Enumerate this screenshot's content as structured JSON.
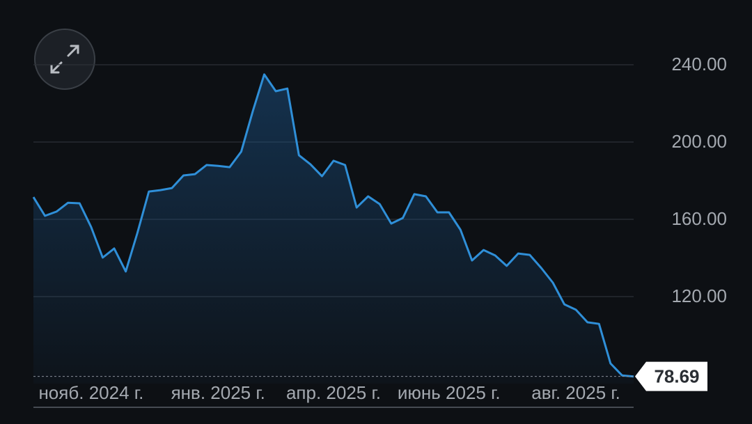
{
  "chart_data": {
    "type": "area",
    "categories": [
      null,
      null,
      null,
      null,
      null,
      "нояб. 2024 г.",
      null,
      null,
      null,
      null,
      null,
      null,
      null,
      null,
      null,
      null,
      "янв. 2025 г.",
      null,
      null,
      null,
      null,
      null,
      null,
      null,
      null,
      null,
      "апр. 2025 г.",
      null,
      null,
      null,
      null,
      null,
      null,
      null,
      null,
      null,
      "июнь 2025 г.",
      null,
      null,
      null,
      null,
      null,
      null,
      null,
      null,
      null,
      null,
      "авг. 2025 г.",
      null,
      null,
      null,
      null,
      null
    ],
    "values": [
      171.5,
      161.8,
      164.0,
      168.6,
      168.3,
      156.0,
      140.2,
      144.9,
      133.0,
      152.8,
      174.4,
      175.1,
      176.2,
      182.7,
      183.4,
      188.1,
      187.7,
      187.0,
      195.0,
      215.9,
      235.0,
      226.3,
      227.7,
      193.2,
      188.5,
      182.3,
      190.3,
      188.1,
      166.1,
      171.9,
      167.9,
      157.8,
      160.7,
      173.0,
      171.9,
      163.6,
      163.6,
      154.6,
      138.7,
      144.1,
      141.3,
      135.9,
      142.3,
      141.6,
      134.8,
      127.2,
      116.0,
      113.2,
      106.7,
      105.9,
      85.4,
      79.2,
      78.69
    ],
    "color": "#2f8fd8",
    "ylim": [
      75,
      255
    ],
    "yticks": [
      {
        "value": 120,
        "label": "120.00"
      },
      {
        "value": 160,
        "label": "160.00"
      },
      {
        "value": 200,
        "label": "200.00"
      },
      {
        "value": 240,
        "label": "240.00"
      }
    ],
    "grid": true
  }
}
